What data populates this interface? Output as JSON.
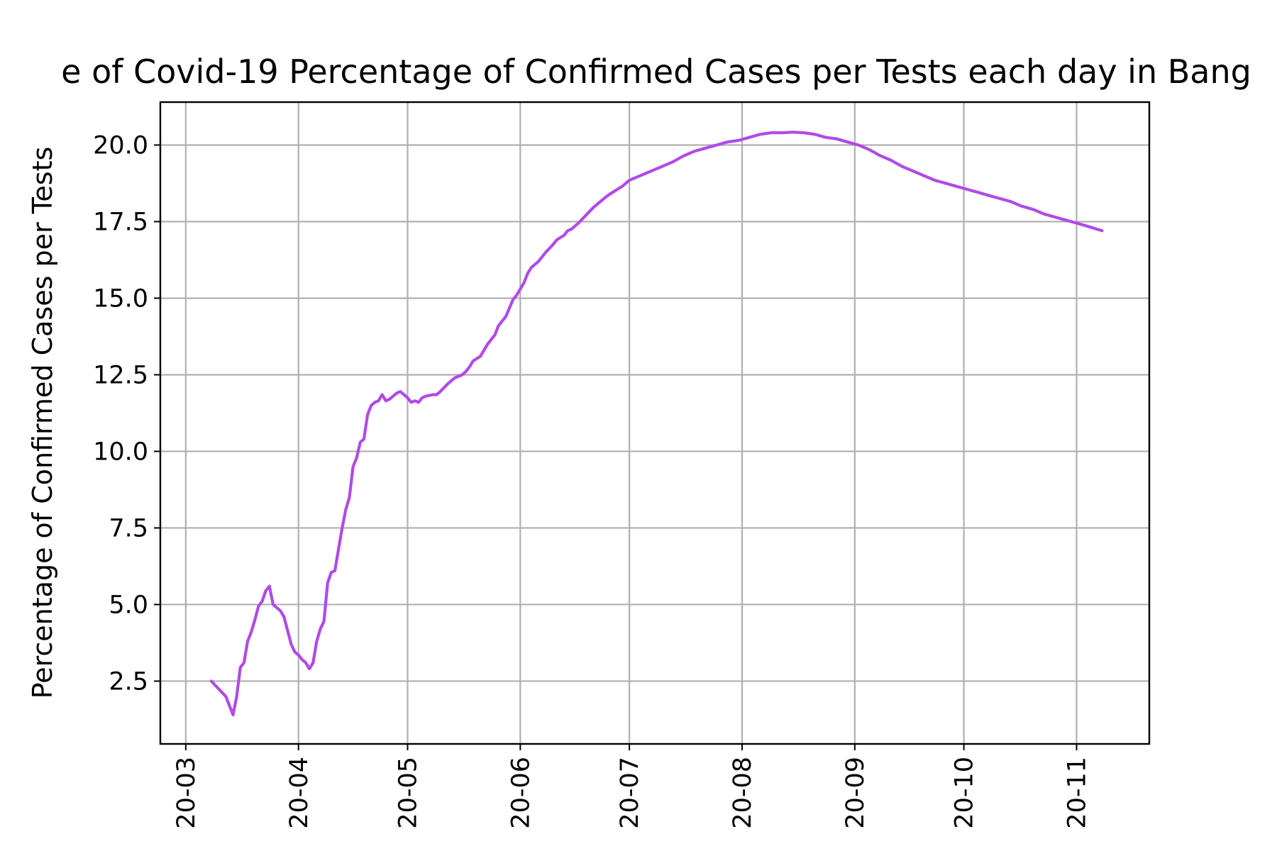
{
  "chart_data": {
    "type": "line",
    "title": "e of Covid-19 Percentage of Confirmed Cases per Tests each day in Bang",
    "xlabel": "",
    "ylabel": "Percentage of Confirmed Cases per Tests",
    "x_axis": "date",
    "xlim": [
      "2020-02-23",
      "2020-11-21"
    ],
    "ylim": [
      0.45,
      21.4
    ],
    "x_ticks": [
      "2020-03-01",
      "2020-04-01",
      "2020-05-01",
      "2020-06-01",
      "2020-07-01",
      "2020-08-01",
      "2020-09-01",
      "2020-10-01",
      "2020-11-01"
    ],
    "x_tick_labels": [
      "20-03",
      "20-04",
      "20-05",
      "20-06",
      "20-07",
      "20-08",
      "20-09",
      "20-10",
      "20-11"
    ],
    "y_ticks": [
      2.5,
      5.0,
      7.5,
      10.0,
      12.5,
      15.0,
      17.5,
      20.0
    ],
    "y_tick_labels": [
      "2.5",
      "5.0",
      "7.5",
      "10.0",
      "12.5",
      "15.0",
      "17.5",
      "20.0"
    ],
    "grid": true,
    "series": [
      {
        "color": "#b04ae8",
        "points": [
          [
            "2020-03-08",
            2.5
          ],
          [
            "2020-03-10",
            2.25
          ],
          [
            "2020-03-12",
            2.0
          ],
          [
            "2020-03-14",
            1.4
          ],
          [
            "2020-03-15",
            2.0
          ],
          [
            "2020-03-16",
            2.95
          ],
          [
            "2020-03-17",
            3.1
          ],
          [
            "2020-03-18",
            3.8
          ],
          [
            "2020-03-19",
            4.1
          ],
          [
            "2020-03-20",
            4.5
          ],
          [
            "2020-03-21",
            4.95
          ],
          [
            "2020-03-22",
            5.1
          ],
          [
            "2020-03-23",
            5.45
          ],
          [
            "2020-03-24",
            5.6
          ],
          [
            "2020-03-25",
            5.0
          ],
          [
            "2020-03-26",
            4.9
          ],
          [
            "2020-03-27",
            4.8
          ],
          [
            "2020-03-28",
            4.6
          ],
          [
            "2020-03-29",
            4.15
          ],
          [
            "2020-03-30",
            3.7
          ],
          [
            "2020-03-31",
            3.45
          ],
          [
            "2020-04-01",
            3.35
          ],
          [
            "2020-04-02",
            3.2
          ],
          [
            "2020-04-03",
            3.1
          ],
          [
            "2020-04-04",
            2.9
          ],
          [
            "2020-04-05",
            3.1
          ],
          [
            "2020-04-06",
            3.8
          ],
          [
            "2020-04-07",
            4.2
          ],
          [
            "2020-04-08",
            4.45
          ],
          [
            "2020-04-09",
            5.7
          ],
          [
            "2020-04-10",
            6.05
          ],
          [
            "2020-04-11",
            6.1
          ],
          [
            "2020-04-12",
            6.8
          ],
          [
            "2020-04-13",
            7.5
          ],
          [
            "2020-04-14",
            8.1
          ],
          [
            "2020-04-15",
            8.5
          ],
          [
            "2020-04-16",
            9.5
          ],
          [
            "2020-04-17",
            9.8
          ],
          [
            "2020-04-18",
            10.3
          ],
          [
            "2020-04-19",
            10.4
          ],
          [
            "2020-04-20",
            11.2
          ],
          [
            "2020-04-21",
            11.5
          ],
          [
            "2020-04-22",
            11.6
          ],
          [
            "2020-04-23",
            11.65
          ],
          [
            "2020-04-24",
            11.85
          ],
          [
            "2020-04-25",
            11.65
          ],
          [
            "2020-04-26",
            11.7
          ],
          [
            "2020-04-27",
            11.8
          ],
          [
            "2020-04-28",
            11.9
          ],
          [
            "2020-04-29",
            11.95
          ],
          [
            "2020-04-30",
            11.85
          ],
          [
            "2020-05-01",
            11.75
          ],
          [
            "2020-05-02",
            11.6
          ],
          [
            "2020-05-03",
            11.65
          ],
          [
            "2020-05-04",
            11.6
          ],
          [
            "2020-05-05",
            11.75
          ],
          [
            "2020-05-06",
            11.8
          ],
          [
            "2020-05-08",
            11.85
          ],
          [
            "2020-05-09",
            11.85
          ],
          [
            "2020-05-10",
            11.95
          ],
          [
            "2020-05-12",
            12.2
          ],
          [
            "2020-05-14",
            12.4
          ],
          [
            "2020-05-16",
            12.5
          ],
          [
            "2020-05-17",
            12.6
          ],
          [
            "2020-05-18",
            12.75
          ],
          [
            "2020-05-19",
            12.95
          ],
          [
            "2020-05-21",
            13.1
          ],
          [
            "2020-05-23",
            13.5
          ],
          [
            "2020-05-25",
            13.8
          ],
          [
            "2020-05-26",
            14.1
          ],
          [
            "2020-05-28",
            14.4
          ],
          [
            "2020-05-30",
            14.95
          ],
          [
            "2020-05-31",
            15.1
          ],
          [
            "2020-06-02",
            15.5
          ],
          [
            "2020-06-03",
            15.8
          ],
          [
            "2020-06-04",
            16.0
          ],
          [
            "2020-06-06",
            16.2
          ],
          [
            "2020-06-08",
            16.5
          ],
          [
            "2020-06-10",
            16.75
          ],
          [
            "2020-06-11",
            16.9
          ],
          [
            "2020-06-13",
            17.05
          ],
          [
            "2020-06-14",
            17.2
          ],
          [
            "2020-06-15",
            17.25
          ],
          [
            "2020-06-17",
            17.45
          ],
          [
            "2020-06-19",
            17.7
          ],
          [
            "2020-06-21",
            17.95
          ],
          [
            "2020-06-23",
            18.15
          ],
          [
            "2020-06-25",
            18.35
          ],
          [
            "2020-06-27",
            18.5
          ],
          [
            "2020-06-29",
            18.65
          ],
          [
            "2020-07-01",
            18.85
          ],
          [
            "2020-07-04",
            19.0
          ],
          [
            "2020-07-07",
            19.15
          ],
          [
            "2020-07-10",
            19.3
          ],
          [
            "2020-07-13",
            19.45
          ],
          [
            "2020-07-16",
            19.65
          ],
          [
            "2020-07-19",
            19.8
          ],
          [
            "2020-07-22",
            19.9
          ],
          [
            "2020-07-25",
            20.0
          ],
          [
            "2020-07-28",
            20.1
          ],
          [
            "2020-07-31",
            20.15
          ],
          [
            "2020-08-03",
            20.25
          ],
          [
            "2020-08-06",
            20.35
          ],
          [
            "2020-08-09",
            20.4
          ],
          [
            "2020-08-12",
            20.4
          ],
          [
            "2020-08-15",
            20.42
          ],
          [
            "2020-08-18",
            20.4
          ],
          [
            "2020-08-21",
            20.35
          ],
          [
            "2020-08-24",
            20.25
          ],
          [
            "2020-08-27",
            20.2
          ],
          [
            "2020-08-30",
            20.1
          ],
          [
            "2020-09-02",
            20.0
          ],
          [
            "2020-09-05",
            19.85
          ],
          [
            "2020-09-08",
            19.65
          ],
          [
            "2020-09-11",
            19.5
          ],
          [
            "2020-09-14",
            19.3
          ],
          [
            "2020-09-17",
            19.15
          ],
          [
            "2020-09-20",
            19.0
          ],
          [
            "2020-09-23",
            18.85
          ],
          [
            "2020-09-26",
            18.75
          ],
          [
            "2020-09-29",
            18.65
          ],
          [
            "2020-10-02",
            18.55
          ],
          [
            "2020-10-05",
            18.45
          ],
          [
            "2020-10-08",
            18.35
          ],
          [
            "2020-10-11",
            18.25
          ],
          [
            "2020-10-14",
            18.15
          ],
          [
            "2020-10-17",
            18.0
          ],
          [
            "2020-10-20",
            17.9
          ],
          [
            "2020-10-23",
            17.75
          ],
          [
            "2020-10-26",
            17.65
          ],
          [
            "2020-10-29",
            17.55
          ],
          [
            "2020-11-01",
            17.45
          ],
          [
            "2020-11-04",
            17.35
          ],
          [
            "2020-11-08",
            17.2
          ]
        ]
      }
    ]
  }
}
